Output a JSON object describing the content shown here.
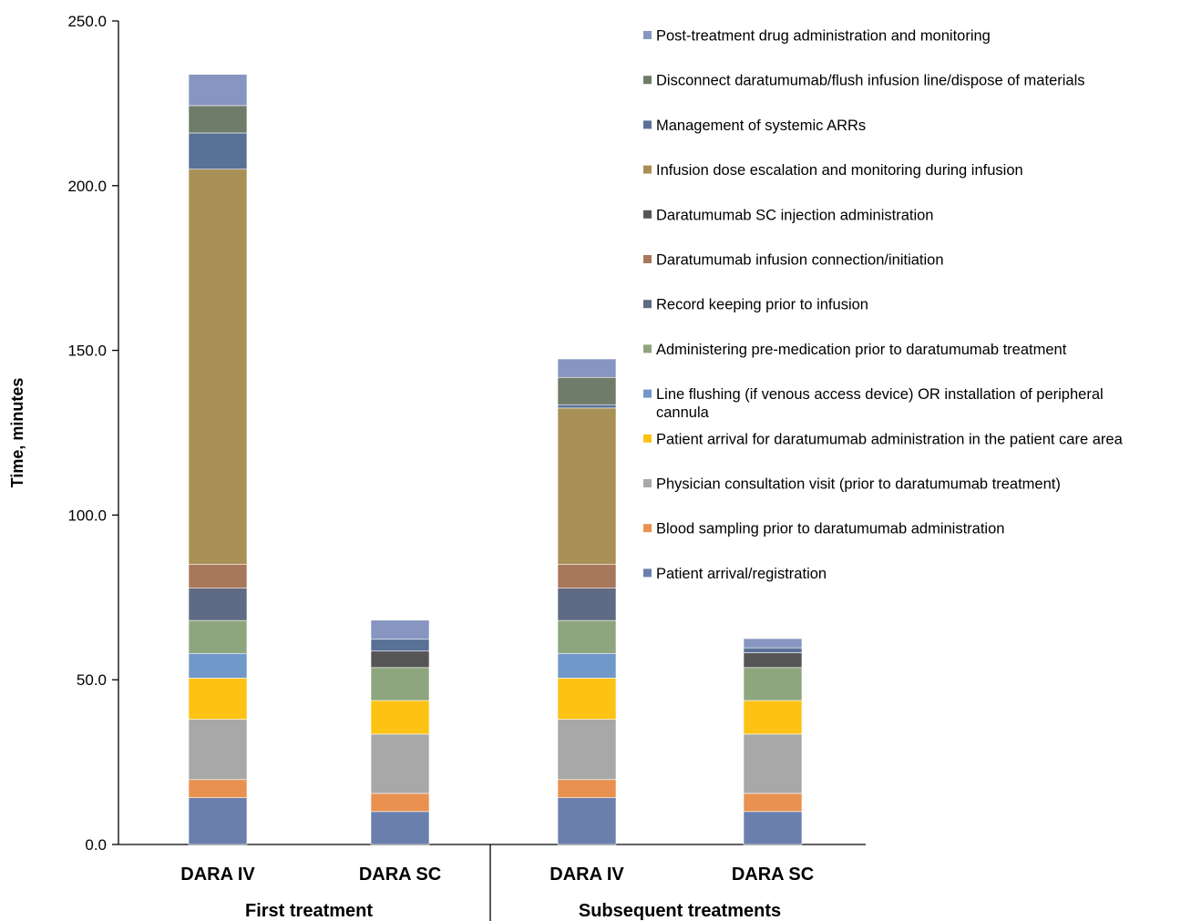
{
  "chart_data": {
    "type": "bar",
    "stacked": true,
    "ylabel": "Time, minutes",
    "ylim": [
      0,
      250
    ],
    "yticks": [
      "0.0",
      "50.0",
      "100.0",
      "150.0",
      "200.0",
      "250.0"
    ],
    "grid": false,
    "legend_position": "top-right",
    "categories": [
      "DARA IV",
      "DARA SC",
      "DARA IV",
      "DARA SC"
    ],
    "groups": [
      {
        "label": "First treatment",
        "categories": [
          0,
          1
        ]
      },
      {
        "label": "Subsequent treatments",
        "categories": [
          2,
          3
        ]
      }
    ],
    "series": [
      {
        "name": "Patient arrival/registration",
        "color": "#6a7fad",
        "values": [
          14.2,
          10.0,
          14.2,
          10.0
        ]
      },
      {
        "name": "Blood sampling prior to daratumumab administration",
        "color": "#e9914f",
        "values": [
          5.5,
          5.5,
          5.5,
          5.5
        ]
      },
      {
        "name": "Physician consultation visit (prior to daratumumab treatment)",
        "color": "#a8a8a8",
        "values": [
          18.3,
          18.0,
          18.3,
          18.0
        ]
      },
      {
        "name": "Patient arrival for daratumumab administration in the patient care area",
        "color": "#fcc214",
        "values": [
          12.5,
          10.2,
          12.5,
          10.2
        ]
      },
      {
        "name": "Line flushing (if venous access device) OR installation of peripheral cannula",
        "color": "#7098c8",
        "values": [
          7.5,
          0,
          7.5,
          0
        ]
      },
      {
        "name": "Administering pre-medication prior to daratumumab treatment",
        "color": "#8ea67d",
        "values": [
          10.0,
          10.0,
          10.0,
          10.0
        ]
      },
      {
        "name": "Record keeping prior to infusion",
        "color": "#5f6a84",
        "values": [
          9.8,
          0,
          9.8,
          0
        ]
      },
      {
        "name": "Daratumumab infusion connection/initiation",
        "color": "#a9775b",
        "values": [
          7.2,
          0,
          7.2,
          0
        ]
      },
      {
        "name": "Daratumumab SC injection administration",
        "color": "#555555",
        "values": [
          0,
          5.0,
          0,
          4.5
        ]
      },
      {
        "name": "Infusion dose escalation and monitoring during infusion",
        "color": "#a99055",
        "values": [
          120.0,
          0,
          47.5,
          0
        ]
      },
      {
        "name": "Management of systemic ARRs",
        "color": "#5a7196",
        "values": [
          11.0,
          3.6,
          1.0,
          1.5
        ]
      },
      {
        "name": "Disconnect daratumumab/flush infusion line/dispose of materials",
        "color": "#6f7c6a",
        "values": [
          8.3,
          0,
          8.3,
          0
        ]
      },
      {
        "name": "Post-treatment drug administration and monitoring",
        "color": "#8796c0",
        "values": [
          9.5,
          5.8,
          5.6,
          2.8
        ]
      }
    ]
  }
}
